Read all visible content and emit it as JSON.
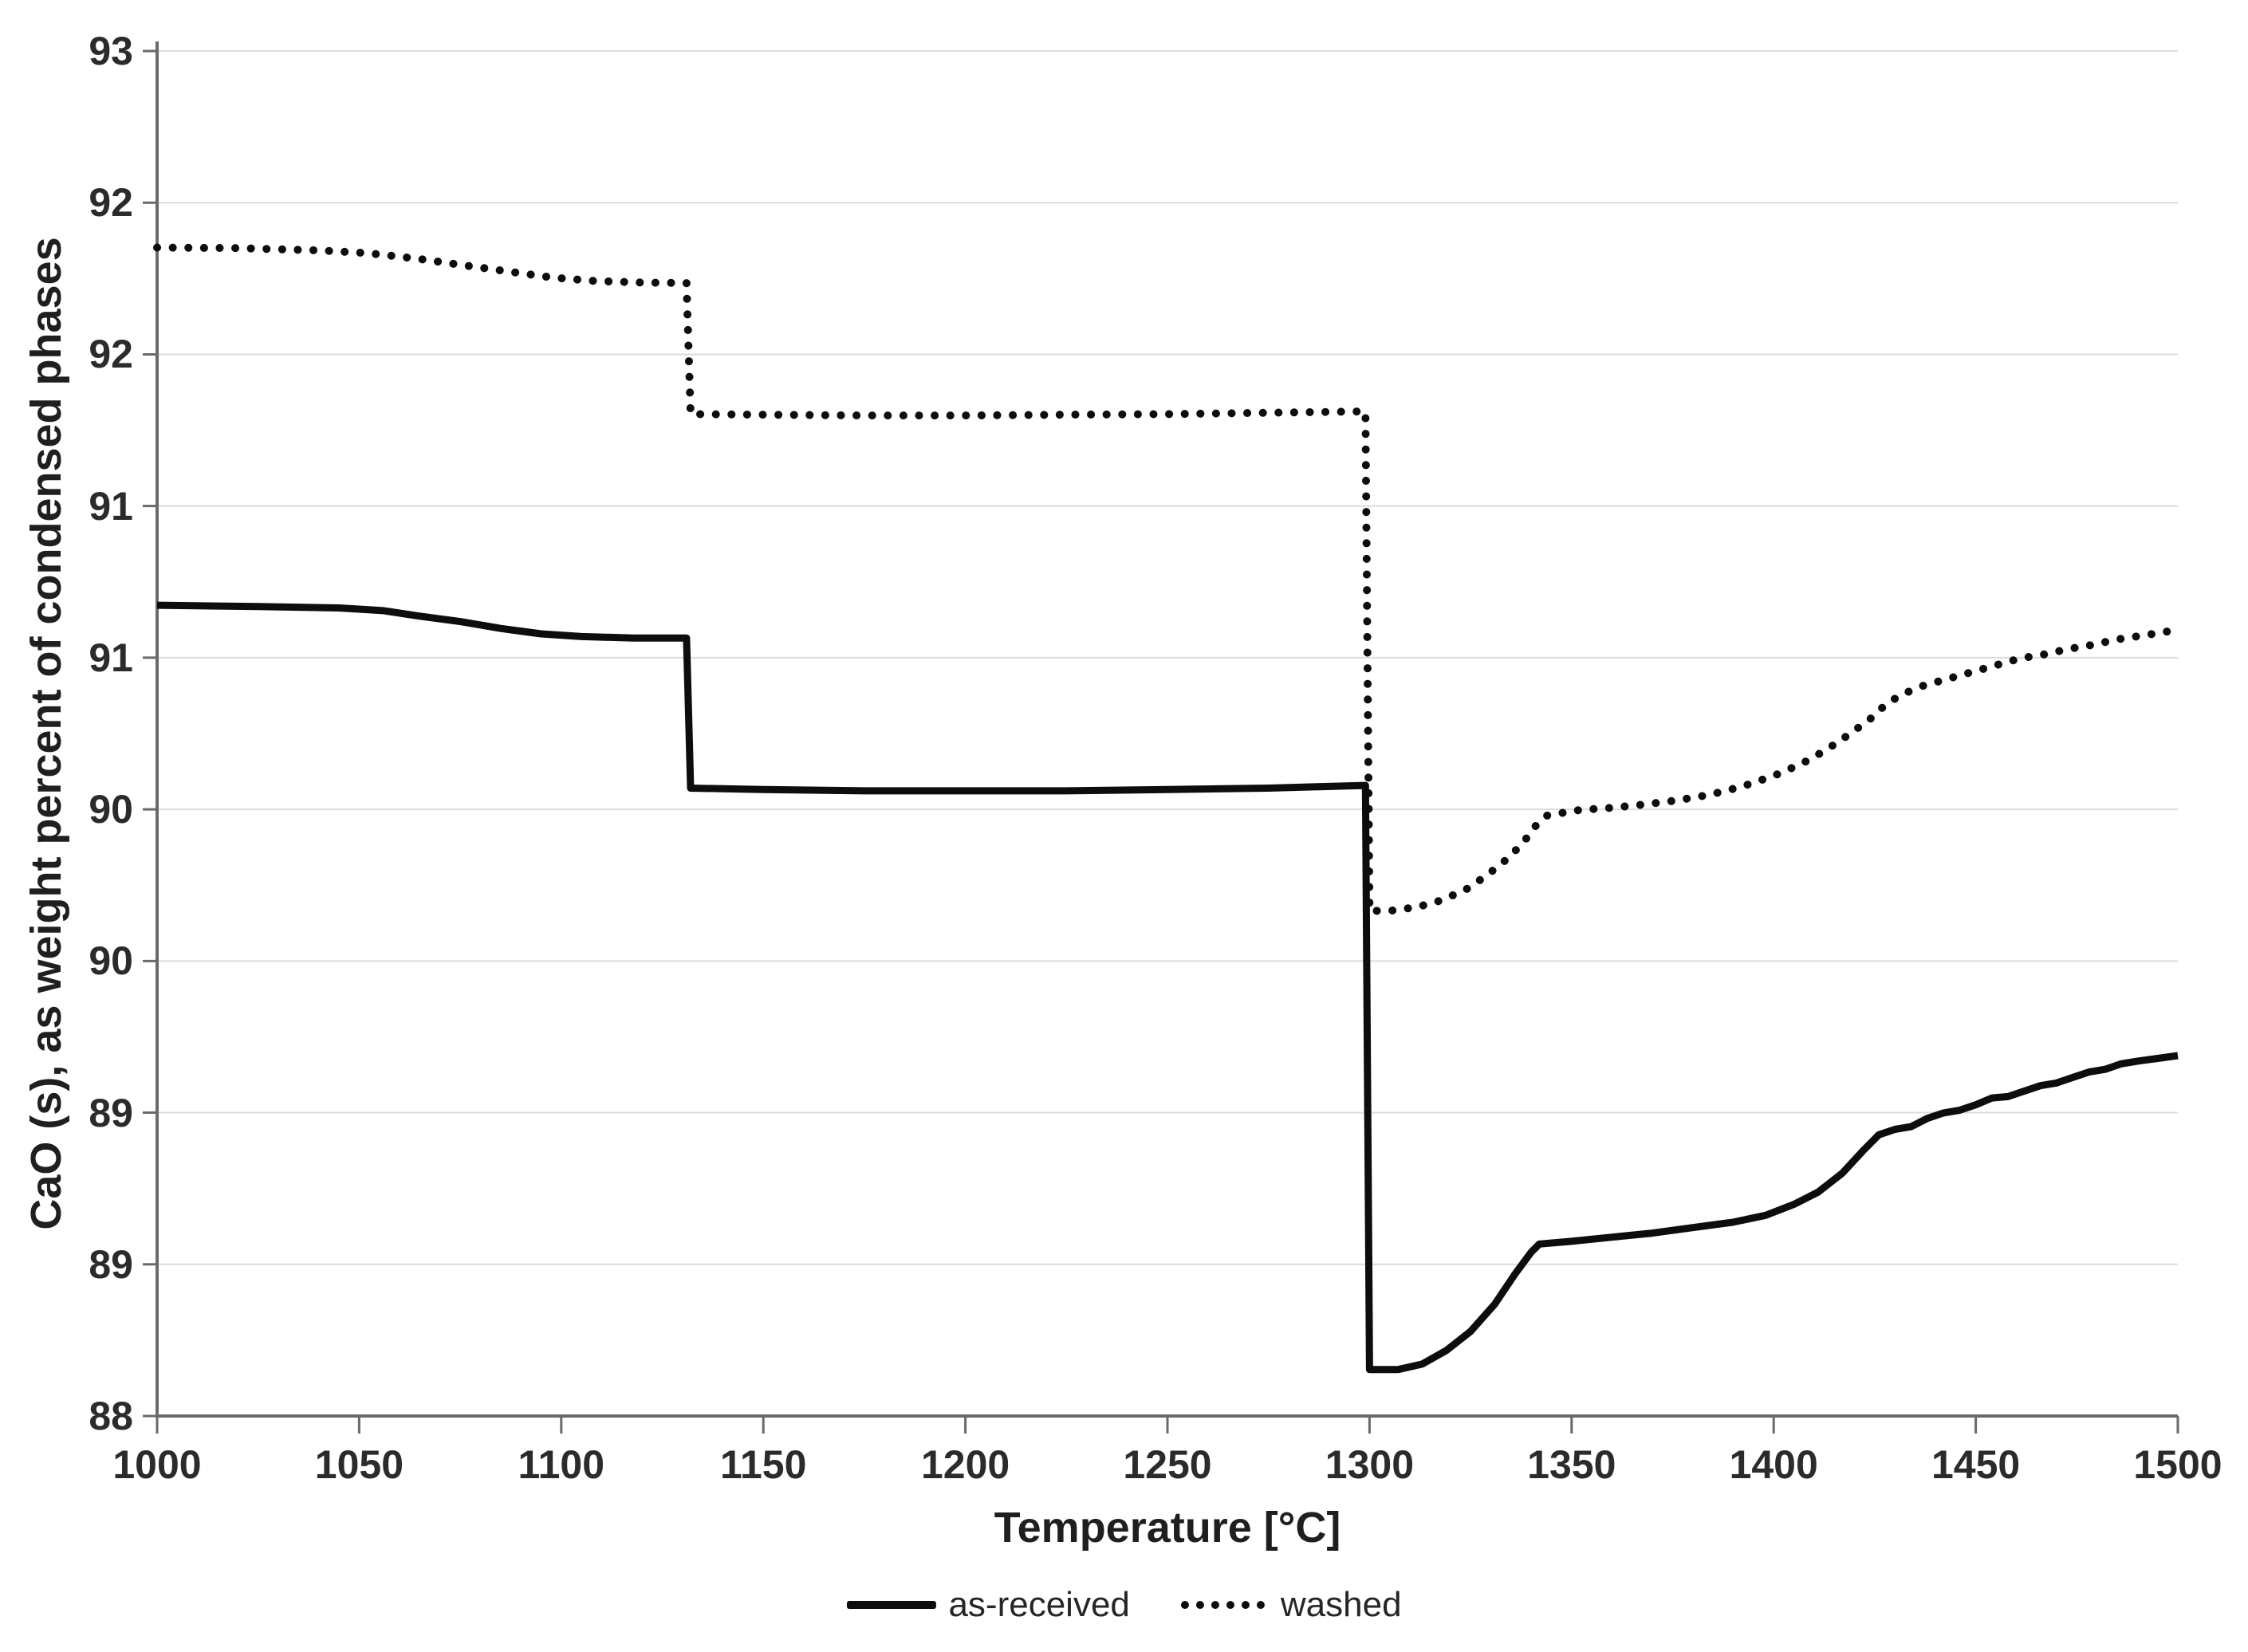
{
  "figure": {
    "y_axis": {
      "title": "CaO (s), as weight percent of condensed phases",
      "tick_labels_top_to_bottom": [
        "93",
        "92",
        "92",
        "91",
        "91",
        "90",
        "90",
        "89",
        "89",
        "88"
      ]
    },
    "x_axis": {
      "title": "Temperature [°C]",
      "ticks": [
        1000,
        1050,
        1100,
        1150,
        1200,
        1250,
        1300,
        1350,
        1400,
        1450,
        1500
      ]
    },
    "legend": [
      {
        "label": "as-received",
        "style": "solid"
      },
      {
        "label": "washed",
        "style": "dotted"
      }
    ],
    "colors": {
      "series_line": "#0d0d0d",
      "axis_line": "#6a6a6a",
      "gridline": "#dcdcdc",
      "label_text": "#2b2b2b"
    }
  },
  "chart_data": {
    "type": "line",
    "title": "",
    "xlabel": "Temperature [°C]",
    "ylabel": "CaO (s), as weight percent of condensed phases",
    "xlim": [
      1000,
      1500
    ],
    "ylim": [
      88,
      93
    ],
    "x_ticks": [
      1000,
      1050,
      1100,
      1150,
      1200,
      1250,
      1300,
      1350,
      1400,
      1450,
      1500
    ],
    "y_tick_labels_bottom_to_top": [
      "88",
      "89",
      "89",
      "90",
      "90",
      "91",
      "91",
      "92",
      "92",
      "93"
    ],
    "grid": true,
    "legend_position": "bottom-center",
    "series": [
      {
        "name": "as-received",
        "style": "solid",
        "points": [
          [
            1000,
            90.97
          ],
          [
            1025,
            90.965
          ],
          [
            1045,
            90.96
          ],
          [
            1056,
            90.95
          ],
          [
            1065,
            90.93
          ],
          [
            1075,
            90.91
          ],
          [
            1085,
            90.885
          ],
          [
            1095,
            90.865
          ],
          [
            1105,
            90.855
          ],
          [
            1118,
            90.85
          ],
          [
            1131,
            90.85
          ],
          [
            1132,
            90.3
          ],
          [
            1150,
            90.295
          ],
          [
            1175,
            90.29
          ],
          [
            1200,
            90.29
          ],
          [
            1225,
            90.29
          ],
          [
            1250,
            90.295
          ],
          [
            1275,
            90.3
          ],
          [
            1299,
            90.31
          ],
          [
            1300,
            88.17
          ],
          [
            1307,
            88.17
          ],
          [
            1313,
            88.19
          ],
          [
            1319,
            88.24
          ],
          [
            1325,
            88.31
          ],
          [
            1331,
            88.41
          ],
          [
            1336,
            88.52
          ],
          [
            1340,
            88.6
          ],
          [
            1342,
            88.63
          ],
          [
            1350,
            88.64
          ],
          [
            1360,
            88.655
          ],
          [
            1370,
            88.67
          ],
          [
            1380,
            88.69
          ],
          [
            1390,
            88.71
          ],
          [
            1398,
            88.735
          ],
          [
            1405,
            88.775
          ],
          [
            1411,
            88.82
          ],
          [
            1417,
            88.89
          ],
          [
            1422,
            88.97
          ],
          [
            1426,
            89.03
          ],
          [
            1430,
            89.05
          ],
          [
            1434,
            89.06
          ],
          [
            1438,
            89.09
          ],
          [
            1442,
            89.11
          ],
          [
            1446,
            89.12
          ],
          [
            1450,
            89.14
          ],
          [
            1454,
            89.165
          ],
          [
            1458,
            89.17
          ],
          [
            1462,
            89.19
          ],
          [
            1466,
            89.21
          ],
          [
            1470,
            89.22
          ],
          [
            1474,
            89.24
          ],
          [
            1478,
            89.26
          ],
          [
            1482,
            89.27
          ],
          [
            1486,
            89.29
          ],
          [
            1490,
            89.3
          ],
          [
            1495,
            89.31
          ],
          [
            1500,
            89.32
          ]
        ]
      },
      {
        "name": "washed",
        "style": "dotted",
        "points": [
          [
            1000,
            92.28
          ],
          [
            1020,
            92.278
          ],
          [
            1040,
            92.27
          ],
          [
            1052,
            92.26
          ],
          [
            1064,
            92.24
          ],
          [
            1076,
            92.215
          ],
          [
            1088,
            92.19
          ],
          [
            1098,
            92.17
          ],
          [
            1108,
            92.158
          ],
          [
            1120,
            92.152
          ],
          [
            1131,
            92.15
          ],
          [
            1132,
            91.67
          ],
          [
            1150,
            91.668
          ],
          [
            1175,
            91.665
          ],
          [
            1200,
            91.665
          ],
          [
            1225,
            91.668
          ],
          [
            1250,
            91.67
          ],
          [
            1275,
            91.675
          ],
          [
            1299,
            91.68
          ],
          [
            1300,
            89.85
          ],
          [
            1306,
            89.852
          ],
          [
            1312,
            89.865
          ],
          [
            1318,
            89.89
          ],
          [
            1324,
            89.93
          ],
          [
            1329,
            89.98
          ],
          [
            1334,
            90.04
          ],
          [
            1338,
            90.1
          ],
          [
            1341,
            90.16
          ],
          [
            1344,
            90.2
          ],
          [
            1352,
            90.22
          ],
          [
            1360,
            90.228
          ],
          [
            1368,
            90.24
          ],
          [
            1376,
            90.255
          ],
          [
            1384,
            90.275
          ],
          [
            1392,
            90.305
          ],
          [
            1400,
            90.345
          ],
          [
            1407,
            90.39
          ],
          [
            1413,
            90.44
          ],
          [
            1419,
            90.5
          ],
          [
            1424,
            90.555
          ],
          [
            1428,
            90.61
          ],
          [
            1432,
            90.645
          ],
          [
            1437,
            90.675
          ],
          [
            1443,
            90.7
          ],
          [
            1449,
            90.725
          ],
          [
            1455,
            90.75
          ],
          [
            1461,
            90.775
          ],
          [
            1467,
            90.79
          ],
          [
            1473,
            90.81
          ],
          [
            1479,
            90.825
          ],
          [
            1485,
            90.845
          ],
          [
            1491,
            90.858
          ],
          [
            1500,
            90.88
          ]
        ]
      }
    ]
  }
}
